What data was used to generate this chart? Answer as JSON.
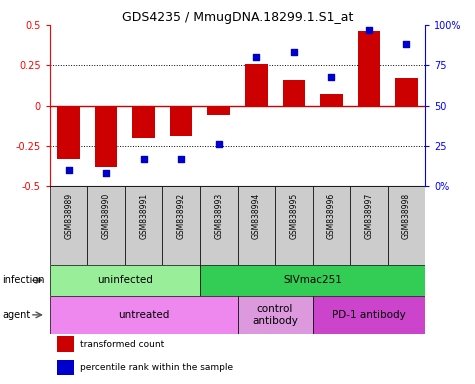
{
  "title": "GDS4235 / MmugDNA.18299.1.S1_at",
  "samples": [
    "GSM838989",
    "GSM838990",
    "GSM838991",
    "GSM838992",
    "GSM838993",
    "GSM838994",
    "GSM838995",
    "GSM838996",
    "GSM838997",
    "GSM838998"
  ],
  "transformed_count": [
    -0.33,
    -0.38,
    -0.2,
    -0.19,
    -0.06,
    0.26,
    0.16,
    0.07,
    0.46,
    0.17
  ],
  "percentile_rank": [
    10,
    8,
    17,
    17,
    26,
    80,
    83,
    68,
    97,
    88
  ],
  "ylim_left": [
    -0.5,
    0.5
  ],
  "ylim_right": [
    0,
    100
  ],
  "yticks_left": [
    -0.5,
    -0.25,
    0.0,
    0.25,
    0.5
  ],
  "yticks_right": [
    0,
    25,
    50,
    75,
    100
  ],
  "ytick_labels_left": [
    "-0.5",
    "-0.25",
    "0",
    "0.25",
    "0.5"
  ],
  "ytick_labels_right": [
    "0%",
    "25",
    "50",
    "75",
    "100%"
  ],
  "bar_color": "#cc0000",
  "dot_color": "#0000cc",
  "hline_color": "#cc0000",
  "grid_lines": [
    -0.25,
    0.0,
    0.25
  ],
  "infection_groups": [
    {
      "label": "uninfected",
      "start": 0,
      "end": 4,
      "color": "#99ee99"
    },
    {
      "label": "SIVmac251",
      "start": 4,
      "end": 10,
      "color": "#33cc55"
    }
  ],
  "agent_groups": [
    {
      "label": "untreated",
      "start": 0,
      "end": 5,
      "color": "#ee88ee"
    },
    {
      "label": "control\nantibody",
      "start": 5,
      "end": 7,
      "color": "#dd99dd"
    },
    {
      "label": "PD-1 antibody",
      "start": 7,
      "end": 10,
      "color": "#cc44cc"
    }
  ],
  "legend_items": [
    {
      "color": "#cc0000",
      "label": "transformed count"
    },
    {
      "color": "#0000cc",
      "label": "percentile rank within the sample"
    }
  ],
  "infection_label": "infection",
  "agent_label": "agent",
  "bar_width": 0.6
}
